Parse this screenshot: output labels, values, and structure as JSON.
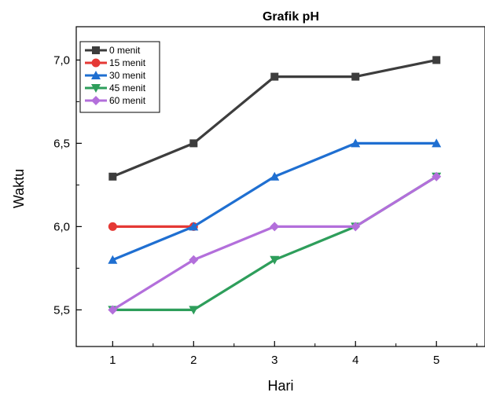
{
  "chart_data": {
    "type": "line",
    "title": "Grafik pH",
    "xlabel": "Hari",
    "ylabel": "Waktu",
    "x": [
      1,
      2,
      3,
      4,
      5
    ],
    "x_tick_labels": [
      "1",
      "2",
      "3",
      "4",
      "5"
    ],
    "y_ticks": [
      5.5,
      6.0,
      6.5,
      7.0
    ],
    "y_tick_labels": [
      "5,5",
      "6,0",
      "6,5",
      "7,0"
    ],
    "xlim": [
      0.55,
      5.6
    ],
    "ylim": [
      5.28,
      7.2
    ],
    "grid": false,
    "legend_position": "top-left",
    "series": [
      {
        "name": "0 menit",
        "color": "#3d3d3d",
        "marker": "square",
        "values": [
          6.3,
          6.5,
          6.9,
          6.9,
          7.0
        ]
      },
      {
        "name": "15 menit",
        "color": "#e53935",
        "marker": "circle",
        "values": [
          6.0,
          6.0,
          null,
          null,
          null
        ]
      },
      {
        "name": "30 menit",
        "color": "#1f6fd1",
        "marker": "triangle-up",
        "values": [
          5.8,
          6.0,
          6.3,
          6.5,
          6.5
        ]
      },
      {
        "name": "45 menit",
        "color": "#2e9e5b",
        "marker": "triangle-down",
        "values": [
          5.5,
          5.5,
          5.8,
          6.0,
          6.3
        ]
      },
      {
        "name": "60 menit",
        "color": "#b36fdb",
        "marker": "diamond",
        "values": [
          5.5,
          5.8,
          6.0,
          6.0,
          6.3
        ]
      }
    ]
  }
}
